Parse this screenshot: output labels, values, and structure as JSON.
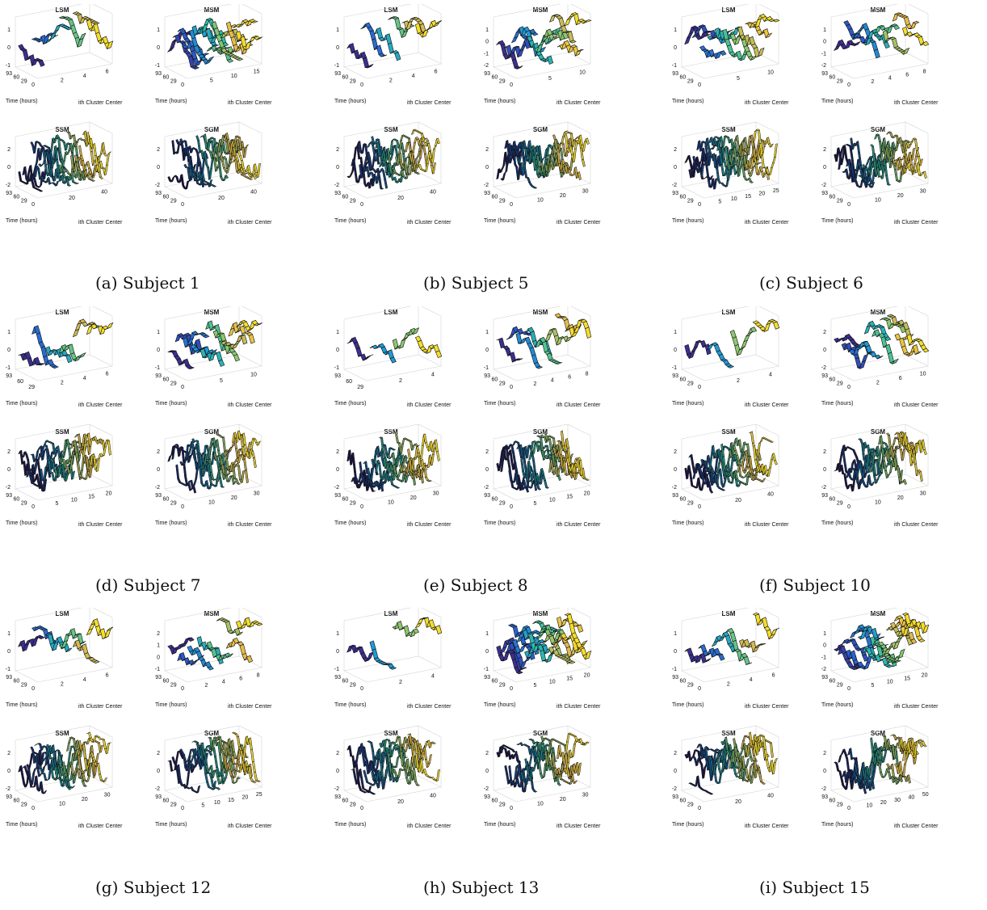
{
  "figure": {
    "panels": [
      {
        "caption": "(a) Subject 1",
        "subplots": [
          {
            "title": "LSM",
            "zticks": [
              "1",
              "0",
              "-1"
            ],
            "yticks": [
              "93",
              "60",
              "29",
              "0"
            ],
            "xticks": [
              "2",
              "4",
              "6"
            ],
            "ylabel": "Time (hours)",
            "xlabel": "ith Cluster Center"
          },
          {
            "title": "MSM",
            "zticks": [
              "1",
              "0",
              "-1"
            ],
            "yticks": [
              "93",
              "60",
              "29",
              "0"
            ],
            "xticks": [
              "5",
              "10",
              "15"
            ],
            "ylabel": "Time (hours)",
            "xlabel": "ith Cluster Center"
          },
          {
            "title": "SSM",
            "zticks": [
              "2",
              "0",
              "-2"
            ],
            "yticks": [
              "93",
              "60",
              "29",
              "0"
            ],
            "xticks": [
              "20",
              "40"
            ],
            "ylabel": "Time (hours)",
            "xlabel": "ith Cluster Center"
          },
          {
            "title": "SGM",
            "zticks": [
              "2",
              "0",
              "-2"
            ],
            "yticks": [
              "93",
              "60",
              "29",
              "0"
            ],
            "xticks": [
              "20",
              "40"
            ],
            "ylabel": "Time (hours)",
            "xlabel": "ith Cluster Center"
          }
        ]
      },
      {
        "caption": "(b) Subject 5",
        "subplots": [
          {
            "title": "LSM",
            "zticks": [
              "1",
              "0",
              "-1"
            ],
            "yticks": [
              "93",
              "60",
              "29",
              "0"
            ],
            "xticks": [
              "2",
              "4",
              "6"
            ],
            "ylabel": "Time (hours)",
            "xlabel": "ith Cluster Center"
          },
          {
            "title": "MSM",
            "zticks": [
              "1",
              "0",
              "-1",
              "-2"
            ],
            "yticks": [
              "93",
              "60",
              "29",
              "0"
            ],
            "xticks": [
              "5",
              "10"
            ],
            "ylabel": "Time (hours)",
            "xlabel": "ith Cluster Center"
          },
          {
            "title": "SSM",
            "zticks": [
              "2",
              "0",
              "-2"
            ],
            "yticks": [
              "93",
              "60",
              "29",
              "0"
            ],
            "xticks": [
              "20",
              "40"
            ],
            "ylabel": "Time (hours)",
            "xlabel": "ith Cluster Center"
          },
          {
            "title": "SGM",
            "zticks": [
              "2",
              "0",
              "-2"
            ],
            "yticks": [
              "93",
              "60",
              "29",
              "0"
            ],
            "xticks": [
              "10",
              "20",
              "30"
            ],
            "ylabel": "Time (hours)",
            "xlabel": "ith Cluster Center"
          }
        ]
      },
      {
        "caption": "(c) Subject 6",
        "subplots": [
          {
            "title": "LSM",
            "zticks": [
              "1",
              "0",
              "-1"
            ],
            "yticks": [
              "93",
              "60",
              "29",
              "0"
            ],
            "xticks": [
              "5",
              "10"
            ],
            "ylabel": "Time (hours)",
            "xlabel": "ith Cluster Center"
          },
          {
            "title": "MSM",
            "zticks": [
              "1",
              "0",
              "-1",
              "-2"
            ],
            "yticks": [
              "93",
              "60",
              "29",
              "0"
            ],
            "xticks": [
              "2",
              "4",
              "6",
              "8"
            ],
            "ylabel": "Time (hours)",
            "xlabel": "ith Cluster Center"
          },
          {
            "title": "SSM",
            "zticks": [
              "2",
              "0",
              "-2"
            ],
            "yticks": [
              "93",
              "60",
              "29",
              "0"
            ],
            "xticks": [
              "5",
              "10",
              "15",
              "20",
              "25"
            ],
            "ylabel": "Time (hours)",
            "xlabel": "ith Cluster Center"
          },
          {
            "title": "SGM",
            "zticks": [
              "2",
              "0",
              "-2"
            ],
            "yticks": [
              "93",
              "60",
              "29",
              "0"
            ],
            "xticks": [
              "10",
              "20",
              "30"
            ],
            "ylabel": "Time (hours)",
            "xlabel": "ith Cluster Center"
          }
        ]
      },
      {
        "caption": "(d) Subject 7",
        "subplots": [
          {
            "title": "LSM",
            "zticks": [
              "1",
              "0",
              "-1"
            ],
            "yticks": [
              "93",
              "60",
              "29"
            ],
            "xticks": [
              "2",
              "4",
              "6"
            ],
            "ylabel": "Time (hours)",
            "xlabel": "ith Cluster Center"
          },
          {
            "title": "MSM",
            "zticks": [
              "1",
              "0",
              "-1"
            ],
            "yticks": [
              "93",
              "60",
              "29",
              "0"
            ],
            "xticks": [
              "5",
              "10"
            ],
            "ylabel": "Time (hours)",
            "xlabel": "ith Cluster Center"
          },
          {
            "title": "SSM",
            "zticks": [
              "2",
              "0",
              "-2"
            ],
            "yticks": [
              "93",
              "60",
              "29",
              "0"
            ],
            "xticks": [
              "5",
              "10",
              "15",
              "20"
            ],
            "ylabel": "Time (hours)",
            "xlabel": "ith Cluster Center"
          },
          {
            "title": "SGM",
            "zticks": [
              "2",
              "0",
              "-2"
            ],
            "yticks": [
              "93",
              "60",
              "29",
              "0"
            ],
            "xticks": [
              "10",
              "20",
              "30"
            ],
            "ylabel": "Time (hours)",
            "xlabel": "ith Cluster Center"
          }
        ]
      },
      {
        "caption": "(e) Subject 8",
        "subplots": [
          {
            "title": "LSM",
            "zticks": [
              "1",
              "0",
              "-1"
            ],
            "yticks": [
              "93",
              "60",
              "29"
            ],
            "xticks": [
              "2",
              "4"
            ],
            "ylabel": "Time (hours)",
            "xlabel": "ith Cluster Center"
          },
          {
            "title": "MSM",
            "zticks": [
              "1",
              "0",
              "-1"
            ],
            "yticks": [
              "93",
              "60",
              "29",
              "0"
            ],
            "xticks": [
              "2",
              "4",
              "6",
              "8"
            ],
            "ylabel": "Time (hours)",
            "xlabel": "ith Cluster Center"
          },
          {
            "title": "SSM",
            "zticks": [
              "2",
              "0",
              "-2"
            ],
            "yticks": [
              "93",
              "60",
              "29",
              "0"
            ],
            "xticks": [
              "10",
              "20",
              "30"
            ],
            "ylabel": "Time (hours)",
            "xlabel": "ith Cluster Center"
          },
          {
            "title": "SGM",
            "zticks": [
              "2",
              "0",
              "-2"
            ],
            "yticks": [
              "93",
              "60",
              "29",
              "0"
            ],
            "xticks": [
              "5",
              "10",
              "15",
              "20"
            ],
            "ylabel": "Time (hours)",
            "xlabel": "ith Cluster Center"
          }
        ]
      },
      {
        "caption": "(f) Subject 10",
        "subplots": [
          {
            "title": "LSM",
            "zticks": [
              "1",
              "0",
              "-1"
            ],
            "yticks": [
              "93",
              "60",
              "29",
              "0"
            ],
            "xticks": [
              "2",
              "4"
            ],
            "ylabel": "Time (hours)",
            "xlabel": "ith Cluster Center"
          },
          {
            "title": "MSM",
            "zticks": [
              "2",
              "0",
              "-2"
            ],
            "yticks": [
              "93",
              "60",
              "29",
              "0"
            ],
            "xticks": [
              "2",
              "6",
              "10"
            ],
            "ylabel": "Time (hours)",
            "xlabel": "ith Cluster Center"
          },
          {
            "title": "SSM",
            "zticks": [
              "2",
              "0",
              "-2"
            ],
            "yticks": [
              "93",
              "60",
              "29",
              "0"
            ],
            "xticks": [
              "20",
              "40"
            ],
            "ylabel": "Time (hours)",
            "xlabel": "ith Cluster Center"
          },
          {
            "title": "SGM",
            "zticks": [
              "2",
              "0",
              "-2"
            ],
            "yticks": [
              "93",
              "60",
              "29",
              "0"
            ],
            "xticks": [
              "10",
              "20",
              "30"
            ],
            "ylabel": "Time (hours)",
            "xlabel": "ith Cluster Center"
          }
        ]
      },
      {
        "caption": "(g) Subject 12",
        "subplots": [
          {
            "title": "LSM",
            "zticks": [
              "1",
              "0",
              "-1"
            ],
            "yticks": [
              "93",
              "60",
              "29",
              "0"
            ],
            "xticks": [
              "2",
              "4",
              "6"
            ],
            "ylabel": "Time (hours)",
            "xlabel": "ith Cluster Center"
          },
          {
            "title": "MSM",
            "zticks": [
              "2",
              "1",
              "0",
              "-1"
            ],
            "yticks": [
              "93",
              "60",
              "29",
              "0"
            ],
            "xticks": [
              "2",
              "4",
              "6",
              "8"
            ],
            "ylabel": "Time (hours)",
            "xlabel": "ith Cluster Center"
          },
          {
            "title": "SSM",
            "zticks": [
              "2",
              "0",
              "-2"
            ],
            "yticks": [
              "93",
              "60",
              "29",
              "0"
            ],
            "xticks": [
              "10",
              "20",
              "30"
            ],
            "ylabel": "Time (hours)",
            "xlabel": "ith Cluster Center"
          },
          {
            "title": "SGM",
            "zticks": [
              "2",
              "0",
              "-2"
            ],
            "yticks": [
              "93",
              "60",
              "29",
              "0"
            ],
            "xticks": [
              "5",
              "10",
              "15",
              "20",
              "25"
            ],
            "ylabel": "Time (hours)",
            "xlabel": "ith Cluster Center"
          }
        ]
      },
      {
        "caption": "(h) Subject 13",
        "subplots": [
          {
            "title": "LSM",
            "zticks": [
              "1",
              "0",
              "-1"
            ],
            "yticks": [
              "93",
              "60",
              "29",
              "0"
            ],
            "xticks": [
              "2",
              "4"
            ],
            "ylabel": "Time (hours)",
            "xlabel": "ith Cluster Center"
          },
          {
            "title": "MSM",
            "zticks": [
              "1",
              "0",
              "-1"
            ],
            "yticks": [
              "93",
              "60",
              "29",
              "0"
            ],
            "xticks": [
              "5",
              "10",
              "15",
              "20"
            ],
            "ylabel": "Time (hours)",
            "xlabel": "ith Cluster Center"
          },
          {
            "title": "SSM",
            "zticks": [
              "2",
              "0",
              "-2"
            ],
            "yticks": [
              "93",
              "60",
              "29",
              "0"
            ],
            "xticks": [
              "20",
              "40"
            ],
            "ylabel": "Time (hours)",
            "xlabel": "ith Cluster Center"
          },
          {
            "title": "SGM",
            "zticks": [
              "2",
              "0",
              "-2"
            ],
            "yticks": [
              "93",
              "60",
              "29",
              "0"
            ],
            "xticks": [
              "10",
              "20",
              "30"
            ],
            "ylabel": "Time (hours)",
            "xlabel": "ith Cluster Center"
          }
        ]
      },
      {
        "caption": "(i) Subject 15",
        "subplots": [
          {
            "title": "LSM",
            "zticks": [
              "1",
              "0",
              "-1"
            ],
            "yticks": [
              "93",
              "60",
              "29",
              "0"
            ],
            "xticks": [
              "2",
              "4",
              "6"
            ],
            "ylabel": "Time (hours)",
            "xlabel": "ith Cluster Center"
          },
          {
            "title": "MSM",
            "zticks": [
              "1",
              "0",
              "-1",
              "-2"
            ],
            "yticks": [
              "93",
              "60",
              "29",
              "0"
            ],
            "xticks": [
              "5",
              "10",
              "15",
              "20"
            ],
            "ylabel": "Time (hours)",
            "xlabel": "ith Cluster Center"
          },
          {
            "title": "SSM",
            "zticks": [
              "2",
              "0",
              "-2"
            ],
            "yticks": [
              "93",
              "60",
              "29",
              "0"
            ],
            "xticks": [
              "20",
              "40"
            ],
            "ylabel": "Time (hours)",
            "xlabel": "ith Cluster Center"
          },
          {
            "title": "SGM",
            "zticks": [
              "2",
              "0",
              "-2"
            ],
            "yticks": [
              "93",
              "60",
              "29",
              "0"
            ],
            "xticks": [
              "10",
              "20",
              "30",
              "40",
              "50"
            ],
            "ylabel": "Time (hours)",
            "xlabel": "ith Cluster Center"
          }
        ]
      }
    ]
  },
  "chart_data": {
    "type": "ribbon3d",
    "colormap": [
      "#3b2f8f",
      "#2b5fd0",
      "#1f9ad6",
      "#2ebfa5",
      "#8cc86f",
      "#e3b84e",
      "#f5de2b"
    ],
    "note_colors": {
      "surface_edge": "#111111",
      "axes_line": "#cccccc"
    },
    "panels": [
      {
        "subject": "Subject 1",
        "clusters": {
          "LSM": 6,
          "MSM": 15,
          "SSM": 40,
          "SGM": 40
        }
      },
      {
        "subject": "Subject 5",
        "clusters": {
          "LSM": 6,
          "MSM": 10,
          "SSM": 40,
          "SGM": 30
        }
      },
      {
        "subject": "Subject 6",
        "clusters": {
          "LSM": 10,
          "MSM": 8,
          "SSM": 25,
          "SGM": 30
        }
      },
      {
        "subject": "Subject 7",
        "clusters": {
          "LSM": 6,
          "MSM": 10,
          "SSM": 20,
          "SGM": 30
        }
      },
      {
        "subject": "Subject 8",
        "clusters": {
          "LSM": 4,
          "MSM": 8,
          "SSM": 30,
          "SGM": 20
        }
      },
      {
        "subject": "Subject 10",
        "clusters": {
          "LSM": 4,
          "MSM": 10,
          "SSM": 40,
          "SGM": 30
        }
      },
      {
        "subject": "Subject 12",
        "clusters": {
          "LSM": 6,
          "MSM": 8,
          "SSM": 30,
          "SGM": 25
        }
      },
      {
        "subject": "Subject 13",
        "clusters": {
          "LSM": 4,
          "MSM": 20,
          "SSM": 40,
          "SGM": 30
        }
      },
      {
        "subject": "Subject 15",
        "clusters": {
          "LSM": 6,
          "MSM": 20,
          "SSM": 40,
          "SGM": 50
        }
      }
    ]
  }
}
